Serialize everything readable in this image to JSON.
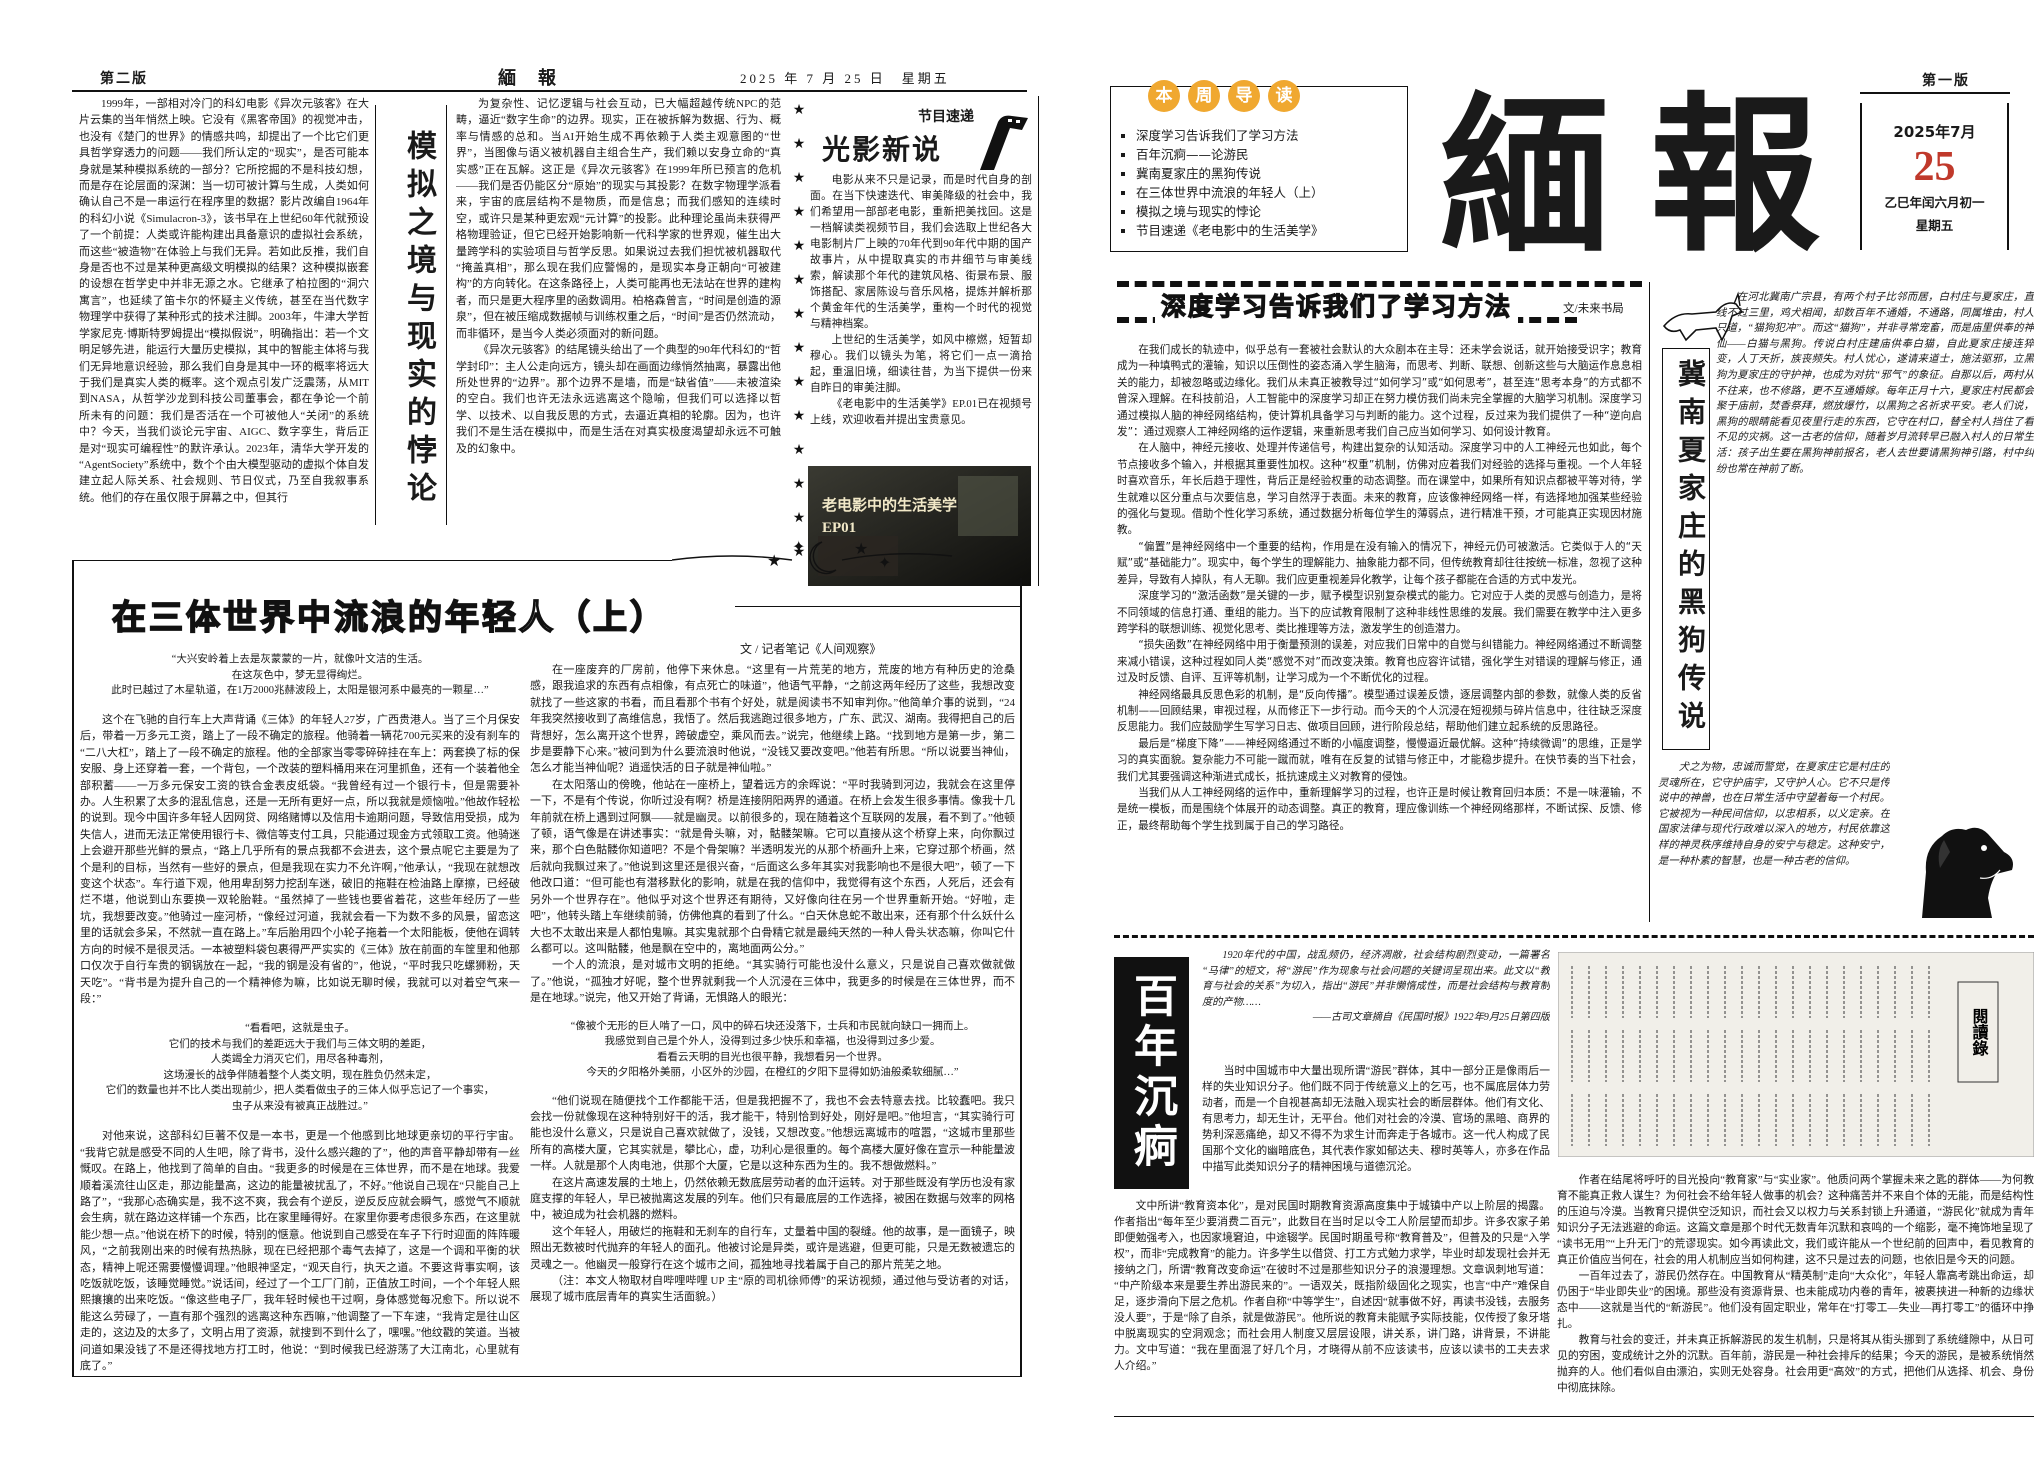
{
  "header_left": {
    "edition": "第二版",
    "masthead": "緬　報",
    "date": "2025 年 7 月 25 日　星期五"
  },
  "header_right": {
    "edition": "第一版"
  },
  "masthead": {
    "name": "緬報",
    "date_line": "2025年7月",
    "day": "25",
    "lunar": "乙巳年闰六月初一",
    "weekday": "星期五"
  },
  "guide": {
    "title_chars": [
      "本",
      "周",
      "导",
      "读"
    ],
    "items": [
      "深度学习告诉我们了学习方法",
      "百年沉痾——论游民",
      "冀南夏家庄的黑狗传说",
      "在三体世界中流浪的年轻人（上）",
      "模拟之境与现实的悖论",
      "节目速递《老电影中的生活美学》"
    ]
  },
  "simulation": {
    "title": "模拟之境与现实的悖论",
    "col1": [
      "1999年，一部相对冷门的科幻电影《异次元骇客》在大片云集的当年悄然上映。它没有《黑客帝国》的视觉冲击，也没有《楚门的世界》的情感共鸣，却提出了一个比它们更具哲学穿透力的问题——我们所认定的“现实”，是否可能本身就是某种模拟系统的一部分？它所挖掘的不是科技幻想，而是存在论层面的深渊：当一切可被计算与生成，人类如何确认自己不是一串运行在程序里的数据？影片改编自1964年的科幻小说《Simulacron-3》，该书早在上世纪60年代就预设了一个前提：人类或许能构建出具备意识的虚拟社会系统，而这些“被造物”在体验上与我们无异。若如此反推，我们自身是否也不过是某种更高级文明模拟的结果？这种模拟嵌套的设想在哲学史中并非无源之水。它继承了柏拉图的“洞穴寓言”，也延续了笛卡尔的怀疑主义传统，甚至在当代数字物理学中获得了某种形式的技术注脚。2003年，牛津大学哲学家尼克·博斯特罗姆提出“模拟假说”，明确指出：若一个文明足够先进，能运行大量历史模拟，其中的智能主体将与我们无异地意识经验，那么我们自身是其中一环的概率将远大于我们是真实人类的概率。这个观点引发广泛震荡，从MIT到NASA，从哲学沙龙到科技公司董事会，都在争论一个前所未有的问题：我们是否活在一个可被他人“关闭”的系统中？今天，当我们谈论元宇宙、AIGC、数字孪生，背后正是对“现实可编程性”的默许承认。2023年，清华大学开发的“AgentSociety”系统中，数个个由大模型驱动的虚拟个体自发建立起人际关系、社会规则、节日仪式，乃至自我叙事系统。他们的存在虽仅限于屏幕之中，但其行"
    ],
    "col2": [
      "为复杂性、记忆逻辑与社会互动，已大幅超越传统NPC的范畴，逼近“数字生命”的边界。现实，正在被拆解为数据、行为、概率与情感的总和。当AI开始生成不再依赖于人类主观意图的“世界”，当图像与语义被机器自主组合生产，我们赖以安身立命的“真实感”正在瓦解。这正是《异次元骇客》在1999年所已预言的危机——我们是否仍能区分“原始”的现实与其投影？在数字物理学派看来，宇宙的底层结构不是物质，而是信息；而我们感知的连续时空，或许只是某种更宏观“元计算”的投影。此种理论虽尚未获得严格物理验证，但它已经开始影响新一代科学家的世界观，催生出大量跨学科的实验项目与哲学反思。如果说过去我们担忧被机器取代“掩盖真相”，那么现在我们应警惕的，是现实本身正朝向“可被建构”的方向转化。在这条路径上，人类可能再也无法站在世界的建构者，而只是更大程序里的函数调用。柏格森曾言，“时间是创造的源泉”，但在被压缩成数据帧与训练权重之后，“时间”是否仍然流动，而非循环，是当今人类必须面对的新问题。",
      "《异次元骇客》的结尾镜头给出了一个典型的90年代科幻的“哲学封印”：主人公走向远方，镜头却在画面边缘悄然抽离，暴露出他所处世界的“边界”。那个边界不是墙，而是“缺省值”——未被渲染的空白。我们也许无法永远逃离这个隐喻，但我们可以选择以哲学、以技术、以自我反思的方式，去逼近真相的轮廓。因为，也许我们不是生活在模拟中，而是生活在对真实极度渴望却永远不可触及的幻象中。"
    ]
  },
  "program": {
    "label": "节目速递",
    "title": "光影新说",
    "paragraphs": [
      "电影从来不只是记录，而是时代自身的剖面。在当下快速迭代、审美降级的社会中，我们希望用一部部老电影，重新把美找回。这是一档解读类视频节目，我们会选取上世纪各大电影制片厂上映的70年代到90年代中期的国产故事片，从中提取真实的市井细节与审美线索，解读那个年代的建筑风格、街景布景、服饰搭配、家居陈设与音乐风格，提炼并解析那个黄金年代的生活美学，重构一个时代的视觉与精神档案。",
      "上世纪的生活美学，如风中檫燃，短暂却穆心。我们以镜头为笔，将它们一点一滴拾起，重温旧境，细读往昔，为当下提供一份来自昨日的审美注脚。",
      "《老电影中的生活美学》EP.01已在视频号上线，欢迎收看并提出宝贵意见。"
    ],
    "image_title": "老电影中的生活美学",
    "image_episode": "EP01"
  },
  "three_body": {
    "title": "在三体世界中流浪的年轻人（上）",
    "byline": "文 / 记者笔记《人间观察》",
    "quote1": [
      "“大兴安岭着上去是灰蒙蒙的一片，就像叶文洁的生活。",
      "在这灰色中，梦无显得绚烂。",
      "此时已越过了木星轨道，在1万2000兆赫波段上，太阳是银河系中最亮的一颗星…”"
    ],
    "col1_a": [
      "这个在飞驰的自行车上大声背诵《三体》的年轻人27岁，广西贵港人。当了三个月保安后，带着一万多元工资，踏上了一段不确定的旅程。他骑着一辆花700元买来的没有刹车的“二八大杠”，踏上了一段不确定的旅程。他的全部家当零零碎碎挂在车上：两套换了标的保安服、身上还穿着一套，一个背包，一个改装的塑料桶用来在河里抓鱼，还有一个装着他全部积蓄——一万多元保安工资的铁合金表皮纸袋。“我曾经有过一个银行卡，但是需要补办。人生积累了太多的混乱信息，还是一无所有更好一点，所以我就是烦恼啦。”他故作轻松的说到。现今中国许多年轻人因网贷、网络赌博以及信用卡逾期问题，导致信用受损，成为失信人，进而无法正常使用银行卡、微信等支付工具，只能通过现金方式领取工资。他骑迷上会避开那些光鲜的景点，“路上几乎所有的景点我都不会进去，这个景点呢它主要是为了个是利的目标，当然有一些好的景点，但是我现在实力不允许啊，”他承认，“我现在就想改变这个状态”。车行道下观，他用卑刮努力挖刮车迷，破旧的拖鞋在检油路上摩擦，已经破烂不堪，他说到山东要换一双轮胎鞋。“虽然掉了一些钱也要省着花，这些年经历了一些坑，我想要改变。”他骑过一座河桥，“像经过河道，我就会看一下为数不多的风景，留恋这里的话就会多呆，不然就一直在路上。”车后胎用四个小轮子拖着一个太阳能板，使他在调转方向的时候不是很灵活。一本被塑料袋包裹得严严实实的《三体》放在前面的车筐里和他那口仅次于自行车贵的钢锅放在一起，“我的钢是没有省的”，他说，“平时我只吃螺狮粉，天天吃”。“背书是为提升自己的一个精神修为嘛，比如说无聊时候，我就可以对着空气来一段：”"
    ],
    "quote2": [
      "“看看吧，这就是虫子。",
      "它们的技术与我们的差距远大于我们与三体文明的差距，",
      "人类竭全力消灭它们，用尽各种毒剂，",
      "这场漫长的战争伴随着整个人类文明，现在胜负仍然未定，",
      "它们的数量也并不比人类出现前少，把人类看做虫子的三体人似乎忘记了一个事实，",
      "虫子从来没有被真正战胜过。”"
    ],
    "col1_b": [
      "对他来说，这部科幻巨著不仅是一本书，更是一个他感到比地球更亲切的平行宇宙。“我背它就是感受不同的人生吧，除了背书，没什么感兴趣的了”，他的声音平静却带有一丝慨叹。在路上，他找到了简单的自由。“我更多的时候是在三体世界，而不是在地球。我爱顺着溪流往山区走，那边能量高，这边的能量被扰乱了，不好。”他说自己现在“只能自己上路了”，“我那心态确实是，我不这不爽，我会有个逆反，逆反反应就会瞬气，感觉气不顺就会生病，就在路边这样铺一个东西，比在家里睡得好。在家里你要考虑很多东西，在这里就能少想一点。”他说在桥下的时候，特别的惬意。他说到自己感受在车子下行时迎面的阵阵暖风，“之前我刚出来的时候有热热脉，现在已经把那个毒气去掉了，这是一个调和平衡的状态，精神上呢还需要慢慢调理。”他眼神坚定，“观天自行，执天之道。不要这背事实啊，该吃饭就吃饭，该睡觉睡觉。”说话间，经过了一个工厂门前，正值放工时间，一个个年轻人熙熙攘攘的出来吃饭。“像这些电子厂，我年轻时候也干过啊，身体感觉每况愈下。所以说不能这么劳碌了，一直有那个强烈的逃离这种东西嘛，”他调整了一下车速，“我肯定是往山区走的，这边及的太多了，文明占用了资源，就搜到不到什么了，嘿嘿。”他纹戳的笑道。当被问道如果没钱了不是还得找地方打工时，他说：“到时候我已经游荡了大江南北，心里就有底了。”"
    ],
    "col2_a": [
      "在一座废弃的厂房前，他停下来休息。“这里有一片荒芜的地方，荒废的地方有种历史的沧桑感，跟我追求的东西有点相像，有点死亡的味道”，他语气平静，“之前这两年经历了这些，我想改变就找了一些这家的书看，而且看那个书有个好处，就是阅读书不知审判你。”他简单介事的说到，“24年我突然接收到了高维信息，我悟了。然后我逃跑过很多地方，广东、武汉、湖南。我得把自己的后背想好，怎么离开这个世界，跨破虚空，乘风而去。”说完，他继续上路。“找到地方是第一步，第二步是要静下心来。”被问到为什么要流浪时他说，“没钱又要改变吧。”他若有所思。“所以说要当神仙，怎么才能当神仙呢？逍遥快活的日子就是神仙啦。”",
      "在太阳落山的傍晚，他站在一座桥上，望着远方的余晖说：“平时我骑到河边，我就会在这里停一下，不是有个传说，你听过没有啊？桥是连接阴阳两界的通道。在桥上会发生很多事情。像我十几年前就在桥上遇到过阿飘——就是幽灵。以前很多的，现在随着这个互联网的发展，看不到了。”他顿了顿，语气像是在讲述事实：“就是骨头嘛，对，骷髅架嘛。它可以直接从这个桥穿上来，向你飘过来，那个白色骷髅你知道吧？不是个骨架嘛？半透明发光的从那个桥画升上来，它穿过那个桥画，然后就向我飘过来了。”他说到这里还是很兴奋，“后面这么多年其实对我影响也不是很大吧”，顿了一下他改口道：“但可能也有潜移默化的影响，就是在我的信仰中，我觉得有这个东西，人死后，还会有另外一个世界存在”。他似乎对这个世界还有期待，又好像向往在另一个世界重新开始。“好啦，走吧”，他转头踏上车继续前骑，仿佛他真的看到了什么。“白天休息蛇不敢出来，还有那个什么妖什么大也不太敢出来是人都怕鬼嘛。其实鬼就那个白骨精它就是最纯天然的一种人骨头状态嘛，你叫它什么都可以。这叫骷髅，他是飘在空中的，离地面两公分。”",
      "一个人的流浪，是对城市文明的拒绝。“其实骑行可能也没什么意义，只是说自己喜欢做就做了。”他说，“孤独才好呢，整个世界就剩我一个人沉浸在三体中，我更多的时候是在三体世界，而不是在地球。”说完，他又开始了背诵，无惧路人的眼光："
    ],
    "quote3": [
      "“像被个无形的巨人啃了一口，风中的碎石块还没落下，士兵和市民就向缺口一拥而上。",
      "我感觉到自己是个外人，没得到过多少快乐和幸福，也没得到过多少爱。",
      "看看云天明的目光也很平静，我想看另一个世界。",
      "今天的夕阳格外美丽，小区外的沙园，在橙红的夕阳下显得如奶油般柔软细腻…”"
    ],
    "col2_b": [
      "“他们说现在随便找个工作都能干活，但是我把握不了，我也不会去特意去找。比较蠢吧。我只会找一份就像现在这种特别好干的活，我才能干，特别恰到好处，刚好是吧。”他坦言，“其实骑行可能也没什么意义，只是说自己喜欢就做了，没钱，又想改变。”他想远离城市的喧嚣，“这城市里那些所有的高楼大厦，它其实就是，攀比心，虚，功利心是很重的。每个高楼大厦好像在宣示一种能量波一样。人就是那个人肉电池，供那个大厦，它是以这种东西为生的。我不想做燃料。”",
      "在这片高速发展的土地上，仍然依赖无数底层劳动者的血汗运转。对于那些既没有学历也没有家庭支撑的年轻人，早已被抛离这发展的列车。他们只有最底层的工作选择，被困在数据与效率的网格中，被迫成为社会机器的燃料。",
      "这个年轻人，用破烂的拖鞋和无刹车的自行车，丈量着中国的裂缝。他的故事，是一面镜子，映照出无数被时代抛弃的年轻人的面孔。他被讨论是异类，或许是逃避，但更可能，只是无数被遗忘的灵魂之一。他幽灵一般穿行在这个城市之间，孤独地寻找着属于自己的那片荒芜之地。",
      "（注：本文人物取材自哔哩哔哩 UP 主“原的司机徐师傅”的采访视频，通过他与受访者的对话，展现了城市底层青年的真实生活面貌。）"
    ]
  },
  "deep_learning": {
    "title": "深度学习告诉我们了学习方法",
    "byline": "文/未来书局",
    "paragraphs": [
      "在我们成长的轨迹中，似乎总有一套被社会默认的大众剧本在主导：还未学会说话，就开始接受识字；教育成为一种填鸭式的灌输，知识以压倒性的姿态涌入学生脑海，而思考、判断、联想、创新这些与大脑运作息息相关的能力，却被忽略或边缘化。我们从未真正被教导过“如何学习”或“如何思考”，甚至连“思考本身”的方式都不曾深入理解。在科技前沿，人工智能中的深度学习却正在努力模仿我们尚未完全掌握的大脑学习机制。深度学习通过模拟人脑的神经网络结构，使计算机具备学习与判断的能力。这个过程，反过来为我们提供了一种“逆向启发”：通过观察人工神经网络的运作逻辑，来重新思考我们自己应当如何学习、如何设计教育。",
      "在人脑中，神经元接收、处理并传递信号，构建出复杂的认知活动。深度学习中的人工神经元也如此，每个节点接收多个输入，并根据其重要性加权。这种“权重”机制，仿佛对应着我们对经验的选择与重视。一个人年轻时喜欢音乐，年长后趋于理性，背后正是经验权重的动态调整。而在课堂中，如果所有知识点都被平等对待，学生就难以区分重点与次要信息，学习自然浮于表面。未来的教育，应该像神经网络一样，有选择地加强某些经验的强化与复现。借助个性化学习系统，通过数据分析每位学生的薄弱点，进行精准干预，才可能真正实现因材施教。",
      "“偏置”是神经网络中一个重要的结构，作用是在没有输入的情况下，神经元仍可被激活。它类似于人的“天赋”或“基础能力”。现实中，每个学生的理解能力、抽象能力都不同，但传统教育却往往按统一标准，忽视了这种差异，导致有人掉队，有人无聊。我们应更重视差异化教学，让每个孩子都能在合适的方式中发光。",
      "深度学习的“激活函数”是关键的一步，赋予模型识别复杂模式的能力。它对应于人类的灵感与创造力，是将不同领域的信息打通、重组的能力。当下的应试教育限制了这种非线性思维的发展。我们需要在教学中注入更多跨学科的联想训练、视觉化思考、类比推理等方法，激发学生的创造潜力。",
      "“损失函数”在神经网络中用于衡量预测的误差，对应我们日常中的自觉与纠错能力。神经网络通过不断调整来减小错误，这种过程如同人类“感觉不对”而改变决策。教育也应容许试错，强化学生对错误的理解与修正，通过及时反馈、自评、互评等机制，让学习成为一个不断优化的过程。",
      "神经网络最具反思色彩的机制，是“反向传播”。模型通过误差反馈，逐层调整内部的参数，就像人类的反省机制——回顾结果，审视过程，从而修正下一步行动。而今天的个人沉浸在短视频与碎片信息中，往往缺乏深度反思能力。我们应鼓励学生写学习日志、做项目回顾，进行阶段总结，帮助他们建立起系统的反思路径。",
      "最后是“梯度下降”——神经网络通过不断的小幅度调整，慢慢逼近最优解。这种“持续微调”的思维，正是学习的真实面貌。复杂能力不可能一蹴而就，唯有在反复的试错与修正中，才能稳步提升。在快节奏的当下社会，我们尤其要强调这种渐进式成长，抵抗速成主义对教育的侵蚀。",
      "当我们从人工神经网络的运作中，重新理解学习的过程，也许正是时候让教育回归本质：不是一味灌输，不是统一模板，而是围绕个体展开的动态调整。真正的教育，理应像训练一个神经网络那样，不断试探、反馈、修正，最终帮助每个学生找到属于自己的学习路径。"
    ]
  },
  "dog_legend": {
    "title": "冀南夏家庄的黑狗传说",
    "paragraphs": [
      "在河北冀南广宗县，有两个村子比邻而居，白村庄与夏家庄，直线不过三里，鸡犬相闻，却数百年不通婚，不通路，同属堆由，村人只道，“猫狗犯冲”。而这“猫狗”，并非寻常宠畜，而是庙里供奉的神仙——白猫与黑狗。传说白村庄建庙供奉白猫，自此夏家庄接连猝变，人丁天折，族丧频失。村人忧心，遂请来道士，施法驱邪，立黑狗为夏家庄的守护神，也成为对抗“邪气”的象征。自那以后，两村从不往来，也不修路，更不互通婚嫁。每年正月十六，夏家庄村民都会聚于庙前，焚香祭拜，燃放爆竹，以黑狗之名祈求平安。老人们说，黑狗的眼睛能看见夜里行走的东西，它守在村口，替全村人挡住了看不见的灾祸。这一古老的信仰，随着岁月流转早已融入村人的日常生活：孩子出生要在黑狗神前报名，老人去世要请黑狗神引路，村中纠纷也常在神前了断。"
    ],
    "continuation": [
      "犬之为物，忠诚而警觉，在夏家庄它是村庄的灵魂所在，它守护庙宇，又守护人心。它不只是传说中的神兽，也在日常生活中守望着每一个村民。它被视为一种民间信仰，以忠相系，以义定亲。在国家法律与现代行政难以深入的地方，村民依靠这样的神灵秩序维持自身的安宁与稳定。这种安宁，是一种朴素的智慧，也是一种古老的信仰。"
    ]
  },
  "vagrants": {
    "title": "百年沉痾",
    "quote": "1920年代的中国，战乱频仍，经济凋敝，社会结构剧烈变动，一篇署名“马律”的短文，将“游民”作为现象与社会问题的关键词呈现出来。此文以“教育与社会的关系”为切入，指出“游民”并非懒惰成性，而是社会结构与教育制度的产物……",
    "source": "——古司文章摘自《民国时报》1922年9月25日第四版",
    "intro": [
      "当时中国城市中大量出现所谓“游民”群体，其中一部分正是像雨后一样的失业知识分子。他们既不同于传统意义上的乞丐，也不属底层体力劳动者，而是一个自视甚高却无法融入现实社会的断层群体。他们有文化、有思考力，却无生计，无平台。他们对社会的冷漠、官场的黑暗、商界的势利深恶痛绝，却又不得不为求生计而奔走于各城市。这一代人构成了民国那个文化的幽暗底色，其代表作家如郁达夫、穆时英等人，亦多在作品中描写此类知识分子的精神困境与道德沉沦。"
    ],
    "left": [
      "文中所讲“教育资本化”，是对民国时期教育资源高度集中于城镇中产以上阶层的揭露。作者指出“每年至少要消费二百元”，此数目在当时足以令工人阶层望而却步。许多农家子弟即便勉强考入，也因家境窘迫，中途辍学。民国时期虽号称“教育普及”，但普及的只是“入学权”，而非“完成教育”的能力。许多学生以借贷、打工方式勉力求学，毕业时却发现社会并无接纳之门，所谓“教育改变命运”在彼时不过是那些知识分子的浪漫理想。文章讽刺地写道：“中产阶级本来是要生养出游民来的”。一语双关，既指阶级固化之现实，也言“中产”难保自足，逐步滑向下层之危机。作者自称“中等学生”，自述因“就事做不好，再读书没钱，去服务没人要”，于是“除了自杀，就是做游民”。他所说的教育未能赋予实际技能，仅传授了象牙塔中脱离现实的空洞观念；而社会用人制度又层层设限，讲关系，讲门路，讲背景，不讲能力。文中写道：“我在里面混了好几个月，才晓得从前不应该读书，应该以读书的工夫去求人介绍。”"
    ],
    "right": [
      "作者在结尾将呼吁的目光投向“教育家”与“实业家”。他质问两个掌握未来之匙的群体——为何教育不能真正救人谋生？为何社会不给年轻人做事的机会？这种痛苦并不来自个体的无能，而是结构性的压迫与冷漠。当教育只提供空泛知识，而社会又以权力与关系封锁上升通道，“游民化”就成为青年知识分子无法逃避的命运。这篇文章是那个时代无数青年沉默和哀鸣的一个缩影，毫不掩饰地呈现了“读书无用”“上升无门”的荒谬现实。如今再读此文，我们或许能从一个世纪前的回声中，看见教育的真正价值应当何在，社会的用人机制应当如何构建，这不只是过去的问题，也依旧是今天的问题。",
      "一百年过去了，游民仍然存在。中国教育从“精英制”走向“大众化”，年轻人靠高考跳出命运，却仍困于“毕业即失业”的困境。那些没有资源背景、也未能成功内卷的青年，被裹挟进一种新的边缘状态中——这就是当代的“新游民”。他们没有固定职业，常年在“打零工—失业—再打零工”的循环中挣扎。",
      "教育与社会的变迁，并未真正拆解游民的发生机制，只是将其从街头挪到了系统缝隙中，从日可见的穷困，变成统计之外的沉默。百年前，游民是一种社会排斥的结果；今天的游民，是被系统悄然抛弃的人。他们看似自由漂泊，实则无处容身。社会用更“高效”的方式，把他们从选择、机会、身份中彻底抹除。"
    ],
    "scan_label": "閱讀錄"
  }
}
